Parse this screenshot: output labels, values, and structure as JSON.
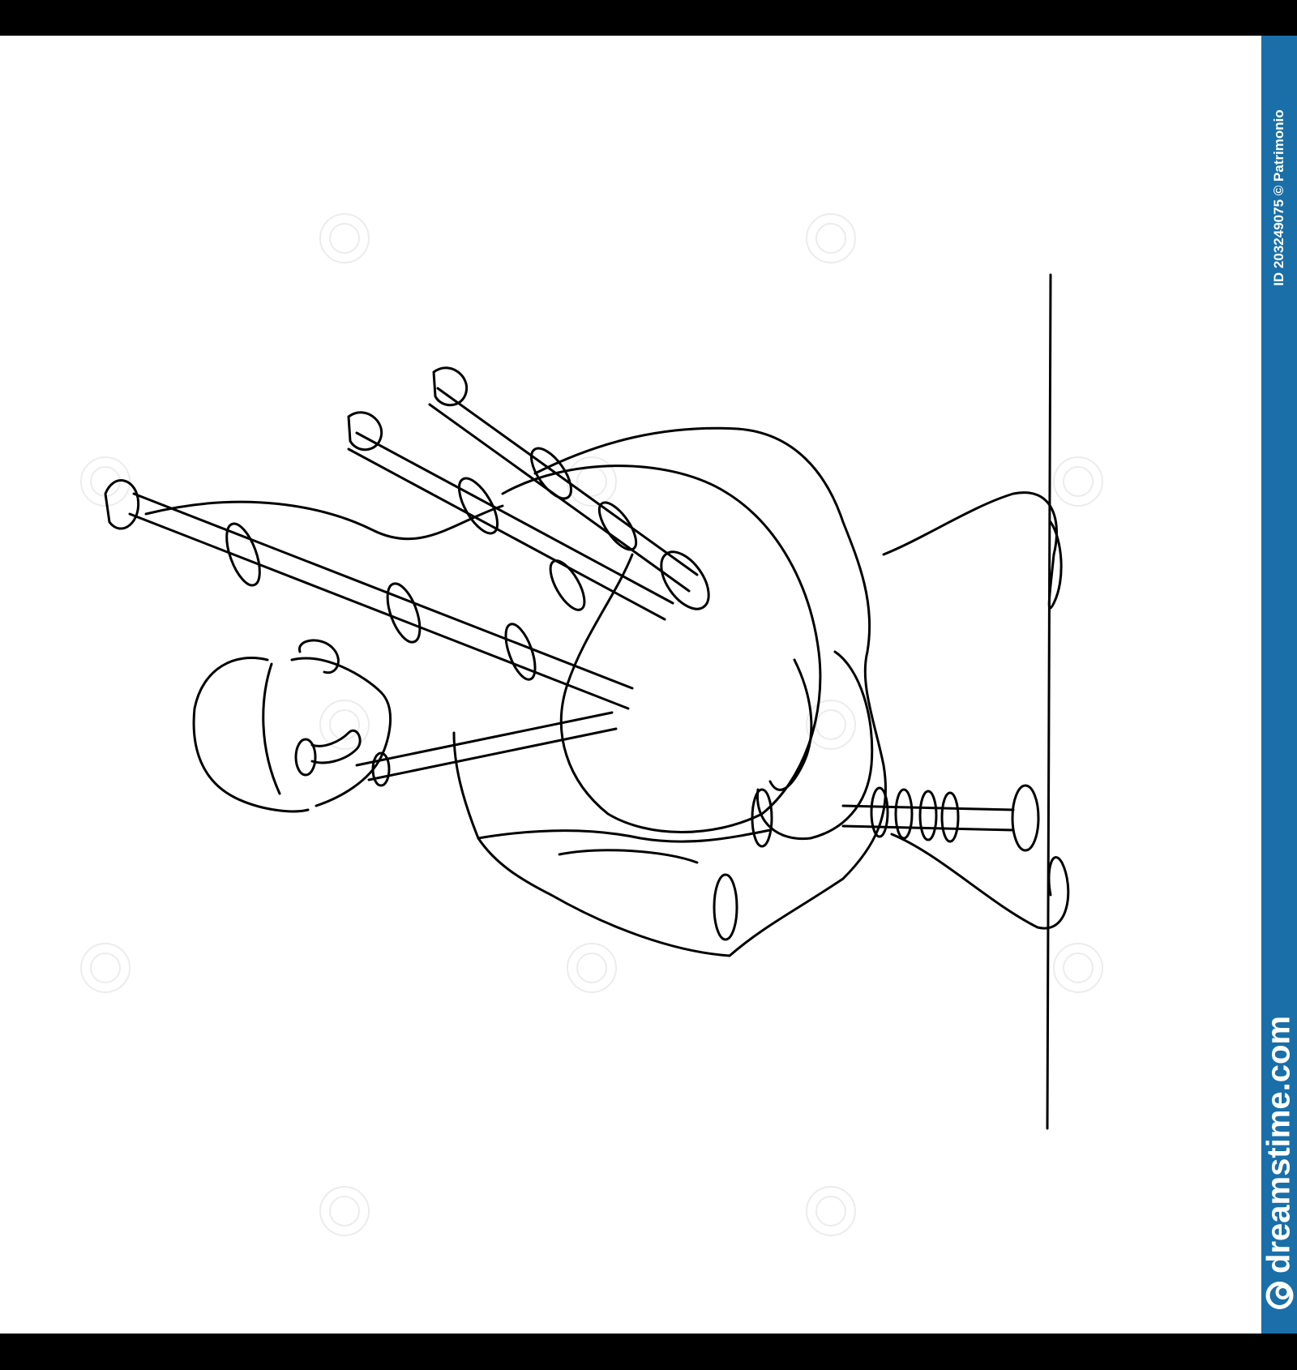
{
  "watermark_strip": {
    "brand": "dreamstime.com",
    "image_credit": "ID 203249075 © Patrimonio",
    "logo_icon": "dreamstime-spiral-logo-icon",
    "color": "#1a6fa8"
  },
  "artwork": {
    "style": "continuous single-line drawing",
    "line_color": "#000000",
    "background_color": "#ffffff"
  },
  "frame": {
    "border_color": "#000000"
  }
}
